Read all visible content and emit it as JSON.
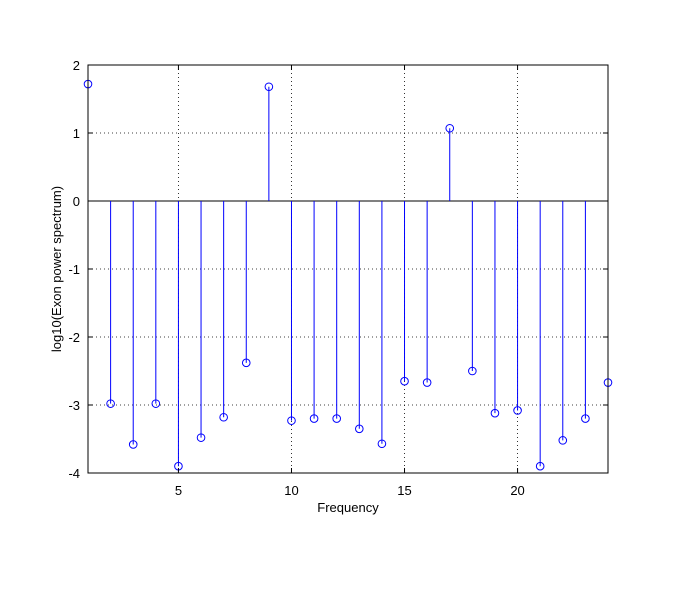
{
  "chart_data": {
    "type": "stem",
    "title": "",
    "xlabel": "Frequency",
    "ylabel": "log10(Exon power spectrum)",
    "xlim": [
      1,
      24
    ],
    "ylim": [
      -4,
      2
    ],
    "xticks": [
      5,
      10,
      15,
      20
    ],
    "yticks": [
      -4,
      -3,
      -2,
      -1,
      0,
      1,
      2
    ],
    "grid": true,
    "baseline": 0,
    "marker": "circle",
    "color": "#0000ff",
    "series": [
      {
        "x": [
          1,
          2,
          3,
          4,
          5,
          6,
          7,
          8,
          9,
          10,
          11,
          12,
          13,
          14,
          15,
          16,
          17,
          18,
          19,
          20,
          21,
          22,
          23,
          24
        ],
        "values": [
          1.72,
          -2.98,
          -3.58,
          -2.98,
          -3.9,
          -3.48,
          -3.18,
          -2.38,
          1.68,
          -3.23,
          -3.2,
          -3.2,
          -3.35,
          -3.57,
          -2.65,
          -2.67,
          1.07,
          -2.5,
          -3.12,
          -3.08,
          -3.9,
          -3.52,
          -3.2,
          -2.67
        ]
      }
    ]
  }
}
